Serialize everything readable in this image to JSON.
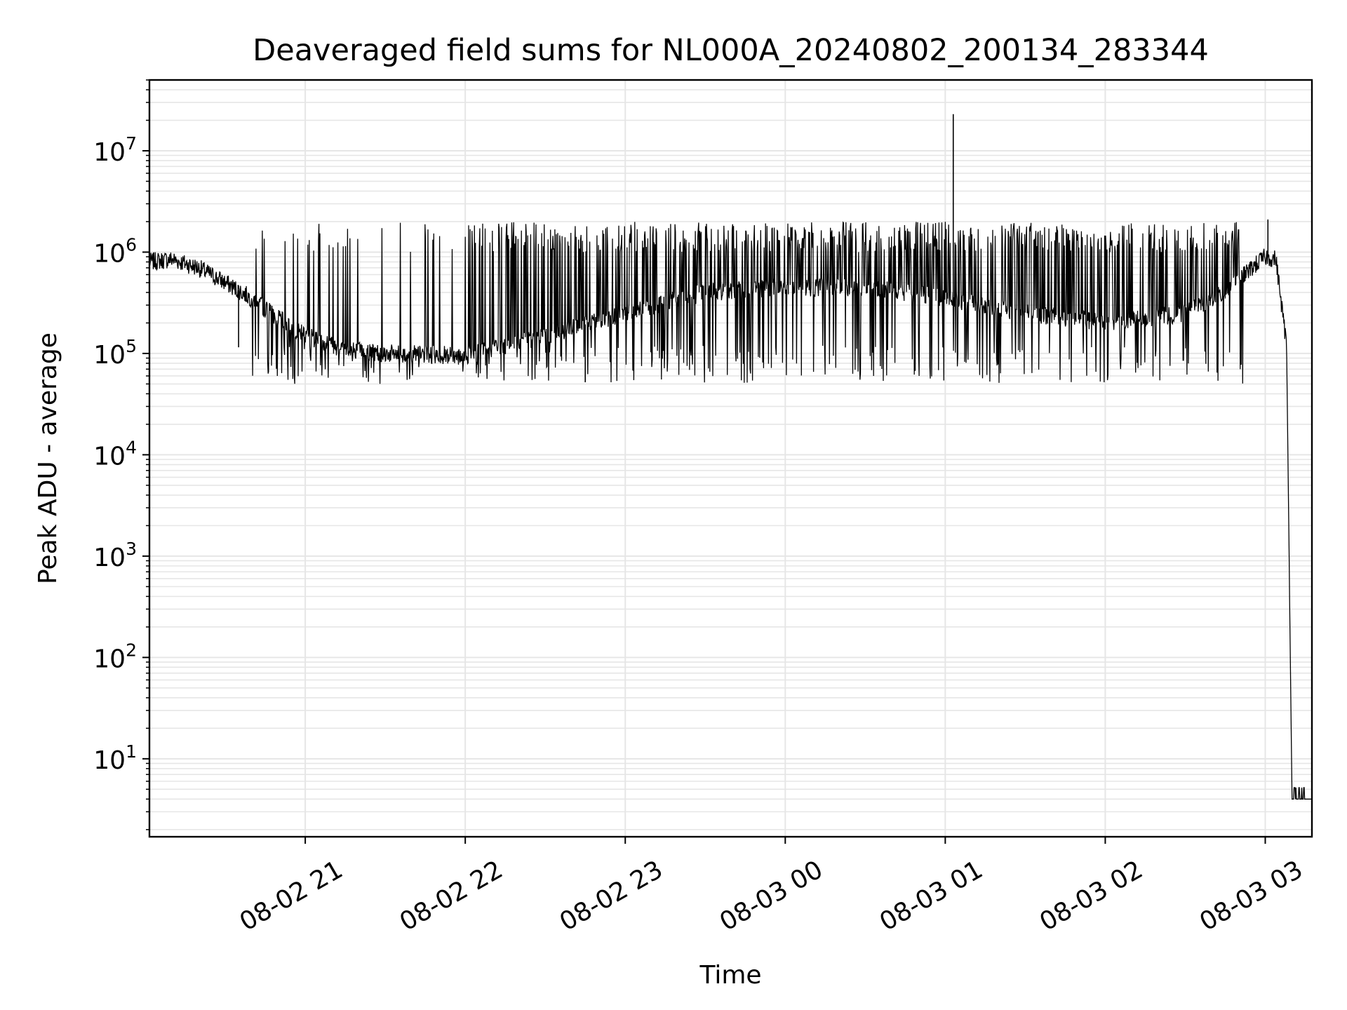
{
  "chart_data": {
    "type": "line",
    "title": "Deaveraged field sums for NL000A_20240802_200134_283344",
    "xlabel": "Time",
    "ylabel": "Peak ADU - average",
    "x_scale": "time",
    "y_scale": "log",
    "xlim": [
      "2024-08-02 20:01:34",
      "2024-08-03 03:17:30"
    ],
    "ylim": [
      1.7,
      50000000
    ],
    "grid": true,
    "line_color": "#000000",
    "grid_color": "#e6e6e6",
    "x_ticks": [
      {
        "value": "2024-08-02 21:00",
        "label": "08-02 21"
      },
      {
        "value": "2024-08-02 22:00",
        "label": "08-02 22"
      },
      {
        "value": "2024-08-02 23:00",
        "label": "08-02 23"
      },
      {
        "value": "2024-08-03 00:00",
        "label": "08-03 00"
      },
      {
        "value": "2024-08-03 01:00",
        "label": "08-03 01"
      },
      {
        "value": "2024-08-03 02:00",
        "label": "08-03 02"
      },
      {
        "value": "2024-08-03 03:00",
        "label": "08-03 03"
      }
    ],
    "y_ticks": [
      {
        "value": 10,
        "base": "10",
        "exp": "1"
      },
      {
        "value": 100,
        "base": "10",
        "exp": "2"
      },
      {
        "value": 1000,
        "base": "10",
        "exp": "3"
      },
      {
        "value": 10000,
        "base": "10",
        "exp": "4"
      },
      {
        "value": 100000,
        "base": "10",
        "exp": "5"
      },
      {
        "value": 1000000,
        "base": "10",
        "exp": "6"
      },
      {
        "value": 10000000,
        "base": "10",
        "exp": "7"
      }
    ],
    "series": [
      {
        "points": [
          [
            "2024-08-02 20:01:34",
            800000
          ],
          [
            "2024-08-02 20:10",
            850000
          ],
          [
            "2024-08-02 20:20",
            700000
          ],
          [
            "2024-08-02 20:30",
            500000
          ],
          [
            "2024-08-02 20:40",
            350000
          ],
          [
            "2024-08-02 20:50",
            220000
          ],
          [
            "2024-08-02 21:00",
            150000
          ],
          [
            "2024-08-02 21:15",
            110000
          ],
          [
            "2024-08-02 21:30",
            100000
          ],
          [
            "2024-08-02 22:00",
            95000
          ],
          [
            "2024-08-02 22:30",
            150000
          ],
          [
            "2024-08-02 23:00",
            250000
          ],
          [
            "2024-08-02 23:30",
            400000
          ],
          [
            "2024-08-03 00:00",
            450000
          ],
          [
            "2024-08-03 00:30",
            450000
          ],
          [
            "2024-08-03 01:00",
            350000
          ],
          [
            "2024-08-03 01:30",
            250000
          ],
          [
            "2024-08-03 02:00",
            200000
          ],
          [
            "2024-08-03 02:30",
            250000
          ],
          [
            "2024-08-03 02:45",
            400000
          ],
          [
            "2024-08-03 02:55",
            700000
          ],
          [
            "2024-08-03 03:00",
            900000
          ],
          [
            "2024-08-03 03:04",
            850000
          ],
          [
            "2024-08-03 03:08",
            120000
          ],
          [
            "2024-08-03 03:10",
            5
          ],
          [
            "2024-08-03 03:17:30",
            4
          ]
        ],
        "upper_spikes_range": [
          1000000,
          2000000
        ],
        "lower_dips_range": [
          50000,
          120000
        ],
        "notable_peaks": [
          [
            "2024-08-03 01:03",
            23000000
          ],
          [
            "2024-08-03 03:01",
            2100000
          ]
        ],
        "notable_dips": [
          [
            "2024-08-02 20:35",
            115000
          ],
          [
            "2024-08-02 22:45",
            52000
          ]
        ]
      }
    ]
  }
}
